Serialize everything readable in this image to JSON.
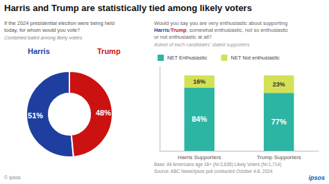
{
  "chart_data": [
    {
      "type": "pie",
      "title": "Harris and Trump are statistically tied among likely voters",
      "subtitle": "If the 2024 presidential election were being held\ntoday, for whom would you vote?",
      "annotations": [
        "Combined ballot among likely voters",
        "© Ipsos"
      ],
      "categories": [
        "Harris",
        "Trump"
      ],
      "values": [
        51,
        48
      ],
      "value_labels": [
        "51%",
        "48%"
      ],
      "colors": [
        "#1e3fa0",
        "#cc1111"
      ],
      "data_labels": true
    },
    {
      "type": "bar",
      "stacked": true,
      "subtitle": "Would you say you are very enthusiastic about supporting\nHarris/Trump, somewhat enthusiastic, not so enthusiastic\nor not enthusiastic at all?",
      "annotations": [
        "Asked of each candidates' stated supporters",
        "Base: All Americans age 18+ (N=2,635) Likely Voters (N=1,714)",
        "Source: ABC News/Ipsos poll conducted October 4-8, 2024",
        "ipsos"
      ],
      "categories": [
        "Harris Supporters",
        "Trump Supporters"
      ],
      "series": [
        {
          "name": "NET Enthusiastic",
          "color": "#2db5a3",
          "values": [
            84,
            77
          ],
          "value_labels": [
            "84%",
            "77%"
          ]
        },
        {
          "name": "NET Not enthusiastic",
          "color": "#d4e157",
          "values": [
            16,
            23
          ],
          "value_labels": [
            "16%",
            "23%"
          ]
        }
      ],
      "ylim": [
        0,
        112
      ],
      "grid": false,
      "legend": "top-left",
      "tick_labels": "x",
      "data_labels": true
    }
  ]
}
